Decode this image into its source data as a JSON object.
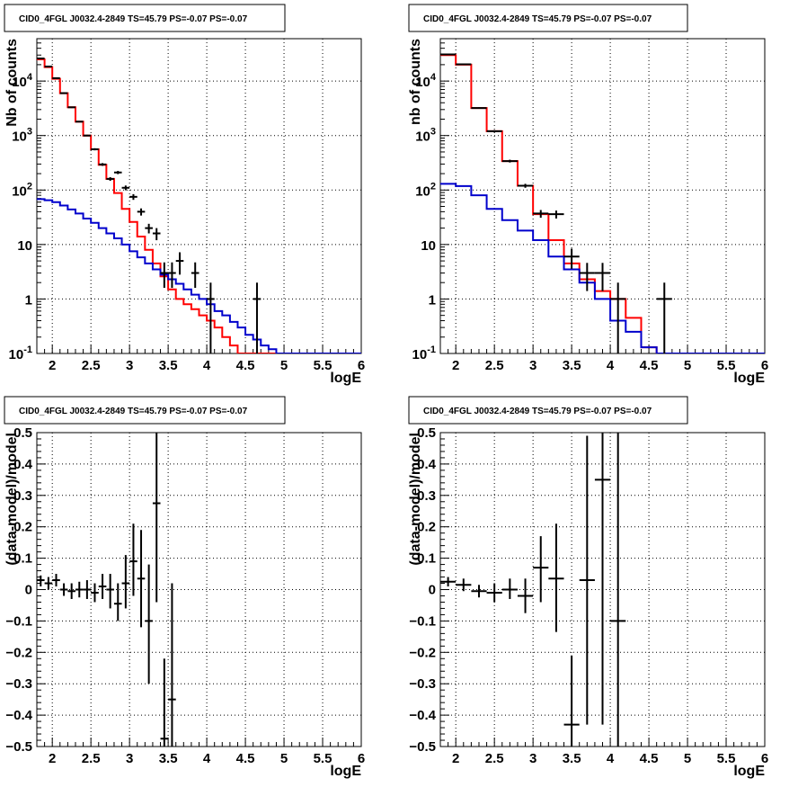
{
  "colors": {
    "model": "#ff0000",
    "background_model": "#0000cc",
    "data": "#000000",
    "grid": "#000000"
  },
  "chart_data": [
    {
      "type": "line",
      "panel": "top-left",
      "title": "CID0_4FGL J0032.4-2849 TS=45.79 PS=-0.07 PS=-0.07",
      "xlabel": "logE",
      "ylabel": "Nb of counts",
      "xlim": [
        1.8,
        6.0
      ],
      "ylim": [
        0.1,
        60000
      ],
      "yscale": "log",
      "grid": true,
      "x_ticks": [
        "2",
        "2.5",
        "3",
        "3.5",
        "4",
        "4.5",
        "5",
        "5.5",
        "6"
      ],
      "y_ticks": [
        {
          "base": "10",
          "exp": "-1"
        },
        {
          "base": "1",
          "exp": ""
        },
        {
          "base": "10",
          "exp": ""
        },
        {
          "base": "10",
          "exp": "2"
        },
        {
          "base": "10",
          "exp": "3"
        },
        {
          "base": "10",
          "exp": "4"
        }
      ],
      "bin_edges": [
        1.8,
        1.9,
        2.0,
        2.1,
        2.2,
        2.3,
        2.4,
        2.5,
        2.6,
        2.7,
        2.8,
        2.9,
        3.0,
        3.1,
        3.2,
        3.3,
        3.4,
        3.5,
        3.6,
        3.7,
        3.8,
        3.9,
        4.0,
        4.1,
        4.2,
        4.3,
        4.4,
        4.5,
        4.6,
        4.7,
        4.8,
        4.9,
        5.0,
        5.1,
        5.2,
        5.3,
        5.4,
        5.5,
        5.6,
        5.7,
        5.8,
        5.9,
        6.0
      ],
      "series": [
        {
          "role": "model",
          "color": "#ff0000",
          "style": "step",
          "values": [
            25000,
            18000,
            11000,
            6000,
            3300,
            1800,
            1000,
            560,
            290,
            160,
            88,
            45,
            26,
            14,
            8,
            4.5,
            2.6,
            1.5,
            1.0,
            0.8,
            0.65,
            0.5,
            0.4,
            0.3,
            0.2,
            0.14,
            0.1,
            0.1,
            0.1,
            0.1,
            0.1,
            0.1,
            0.1,
            0.1,
            0.1,
            0.1,
            0.1,
            0.1,
            0.1,
            0.1,
            0.1,
            0.1
          ]
        },
        {
          "role": "background",
          "color": "#0000cc",
          "style": "step",
          "values": [
            68,
            65,
            60,
            52,
            44,
            37,
            30,
            25,
            20,
            16,
            13,
            10,
            7.5,
            5.8,
            4.5,
            3.5,
            2.8,
            2.3,
            1.9,
            1.5,
            1.2,
            1.0,
            0.8,
            0.6,
            0.5,
            0.38,
            0.3,
            0.22,
            0.18,
            0.14,
            0.12,
            0.1,
            0.1,
            0.1,
            0.1,
            0.1,
            0.1,
            0.1,
            0.1,
            0.1,
            0.1,
            0.1
          ]
        },
        {
          "role": "data",
          "color": "#000000",
          "style": "errorbar",
          "points": [
            {
              "x": 1.85,
              "y": 26000,
              "lo": 25500,
              "hi": 26500
            },
            {
              "x": 1.95,
              "y": 18500,
              "lo": 18100,
              "hi": 18900
            },
            {
              "x": 2.05,
              "y": 11300,
              "lo": 11000,
              "hi": 11600
            },
            {
              "x": 2.15,
              "y": 6000,
              "lo": 5800,
              "hi": 6200
            },
            {
              "x": 2.25,
              "y": 3300,
              "lo": 3200,
              "hi": 3400
            },
            {
              "x": 2.35,
              "y": 1800,
              "lo": 1750,
              "hi": 1850
            },
            {
              "x": 2.45,
              "y": 1000,
              "lo": 970,
              "hi": 1030
            },
            {
              "x": 2.55,
              "y": 560,
              "lo": 535,
              "hi": 585
            },
            {
              "x": 2.65,
              "y": 295,
              "lo": 278,
              "hi": 312
            },
            {
              "x": 2.75,
              "y": 160,
              "lo": 148,
              "hi": 172
            },
            {
              "x": 2.85,
              "y": 210,
              "lo": 196,
              "hi": 224
            },
            {
              "x": 2.95,
              "y": 110,
              "lo": 99,
              "hi": 121
            },
            {
              "x": 3.05,
              "y": 75,
              "lo": 66,
              "hi": 84
            },
            {
              "x": 3.15,
              "y": 40,
              "lo": 34,
              "hi": 46
            },
            {
              "x": 3.25,
              "y": 20,
              "lo": 16,
              "hi": 24
            },
            {
              "x": 3.35,
              "y": 16,
              "lo": 12,
              "hi": 20
            },
            {
              "x": 3.45,
              "y": 3,
              "lo": 1.6,
              "hi": 4.7
            },
            {
              "x": 3.55,
              "y": 3,
              "lo": 1.6,
              "hi": 4.7
            },
            {
              "x": 3.65,
              "y": 5,
              "lo": 2.8,
              "hi": 7.2
            },
            {
              "x": 3.85,
              "y": 3,
              "lo": 1.6,
              "hi": 4.7
            },
            {
              "x": 4.05,
              "y": 1,
              "lo": 0.1,
              "hi": 2.0
            },
            {
              "x": 4.65,
              "y": 1,
              "lo": 0.1,
              "hi": 2.0
            }
          ]
        }
      ]
    },
    {
      "type": "line",
      "panel": "top-right",
      "title": "CID0_4FGL J0032.4-2849 TS=45.79 PS=-0.07 PS=-0.07",
      "xlabel": "logE",
      "ylabel": "nb of counts",
      "xlim": [
        1.8,
        6.0
      ],
      "ylim": [
        0.1,
        60000
      ],
      "yscale": "log",
      "grid": true,
      "x_ticks": [
        "2",
        "2.5",
        "3",
        "3.5",
        "4",
        "4.5",
        "5",
        "5.5",
        "6"
      ],
      "y_ticks": [
        {
          "base": "10",
          "exp": "-1"
        },
        {
          "base": "1",
          "exp": ""
        },
        {
          "base": "10",
          "exp": ""
        },
        {
          "base": "10",
          "exp": "2"
        },
        {
          "base": "10",
          "exp": "3"
        },
        {
          "base": "10",
          "exp": "4"
        }
      ],
      "bin_edges": [
        1.8,
        2.0,
        2.2,
        2.4,
        2.6,
        2.8,
        3.0,
        3.2,
        3.4,
        3.6,
        3.8,
        4.0,
        4.2,
        4.4,
        4.6,
        4.8,
        5.0,
        5.2,
        5.4,
        5.6,
        5.8,
        6.0
      ],
      "series": [
        {
          "role": "model",
          "color": "#ff0000",
          "style": "step",
          "values": [
            30000,
            20000,
            3200,
            1200,
            340,
            120,
            36,
            12,
            4.5,
            2.3,
            1.4,
            1.0,
            0.45,
            0.13,
            0.1,
            0.1,
            0.1,
            0.1,
            0.1,
            0.1,
            0.1
          ]
        },
        {
          "role": "background",
          "color": "#0000cc",
          "style": "step",
          "values": [
            130,
            118,
            80,
            45,
            28,
            18,
            12,
            6,
            3.5,
            2,
            1,
            0.4,
            0.25,
            0.13,
            0.1,
            0.1,
            0.1,
            0.1,
            0.1,
            0.1,
            0.1
          ]
        },
        {
          "role": "data",
          "color": "#000000",
          "style": "errorbar",
          "points": [
            {
              "x": 1.9,
              "y": 30800,
              "lo": 30300,
              "hi": 31300
            },
            {
              "x": 2.1,
              "y": 20300,
              "lo": 19900,
              "hi": 20700
            },
            {
              "x": 2.3,
              "y": 3200,
              "lo": 3100,
              "hi": 3300
            },
            {
              "x": 2.5,
              "y": 1200,
              "lo": 1150,
              "hi": 1250
            },
            {
              "x": 2.7,
              "y": 340,
              "lo": 320,
              "hi": 360
            },
            {
              "x": 2.9,
              "y": 120,
              "lo": 110,
              "hi": 130
            },
            {
              "x": 3.1,
              "y": 37,
              "lo": 31,
              "hi": 43
            },
            {
              "x": 3.3,
              "y": 36,
              "lo": 30,
              "hi": 42
            },
            {
              "x": 3.5,
              "y": 6,
              "lo": 3.6,
              "hi": 8.4
            },
            {
              "x": 3.7,
              "y": 3,
              "lo": 1.4,
              "hi": 4.6
            },
            {
              "x": 3.9,
              "y": 3,
              "lo": 1.4,
              "hi": 4.6
            },
            {
              "x": 4.1,
              "y": 1,
              "lo": 0.1,
              "hi": 2.0
            },
            {
              "x": 4.7,
              "y": 1,
              "lo": 0.1,
              "hi": 2.0
            }
          ]
        }
      ]
    },
    {
      "type": "scatter",
      "panel": "bottom-left",
      "title": "CID0_4FGL J0032.4-2849 TS=45.79 PS=-0.07 PS=-0.07",
      "xlabel": "logE",
      "ylabel": "(data-model)/model",
      "xlim": [
        1.8,
        6.0
      ],
      "ylim": [
        -0.5,
        0.5
      ],
      "grid": true,
      "x_ticks": [
        "2",
        "2.5",
        "3",
        "3.5",
        "4",
        "4.5",
        "5",
        "5.5",
        "6"
      ],
      "y_ticks": [
        "−0.5",
        "−0.4",
        "−0.3",
        "−0.2",
        "−0.1",
        "0",
        "0.1",
        "0.2",
        "0.3",
        "0.4",
        "0.5"
      ],
      "bin_half_width": 0.05,
      "points": [
        {
          "x": 1.85,
          "y": 0.03,
          "lo": 0.01,
          "hi": 0.045
        },
        {
          "x": 1.95,
          "y": 0.02,
          "lo": 0.0,
          "hi": 0.04
        },
        {
          "x": 2.05,
          "y": 0.03,
          "lo": 0.01,
          "hi": 0.05
        },
        {
          "x": 2.15,
          "y": 0.0,
          "lo": -0.02,
          "hi": 0.02
        },
        {
          "x": 2.25,
          "y": -0.005,
          "lo": -0.03,
          "hi": 0.02
        },
        {
          "x": 2.35,
          "y": 0.0,
          "lo": -0.025,
          "hi": 0.025
        },
        {
          "x": 2.45,
          "y": 0.0,
          "lo": -0.03,
          "hi": 0.03
        },
        {
          "x": 2.55,
          "y": -0.01,
          "lo": -0.04,
          "hi": 0.02
        },
        {
          "x": 2.65,
          "y": 0.01,
          "lo": -0.03,
          "hi": 0.05
        },
        {
          "x": 2.75,
          "y": 0.0,
          "lo": -0.06,
          "hi": 0.05
        },
        {
          "x": 2.85,
          "y": -0.045,
          "lo": -0.1,
          "hi": 0.02
        },
        {
          "x": 2.95,
          "y": 0.02,
          "lo": -0.06,
          "hi": 0.11
        },
        {
          "x": 3.05,
          "y": 0.09,
          "lo": -0.02,
          "hi": 0.21
        },
        {
          "x": 3.15,
          "y": 0.035,
          "lo": -0.12,
          "hi": 0.19
        },
        {
          "x": 3.25,
          "y": -0.1,
          "lo": -0.3,
          "hi": 0.08
        },
        {
          "x": 3.35,
          "y": 0.275,
          "lo": -0.04,
          "hi": 0.5
        },
        {
          "x": 3.45,
          "y": -0.475,
          "lo": -0.5,
          "hi": -0.22
        },
        {
          "x": 3.55,
          "y": -0.35,
          "lo": -0.5,
          "hi": 0.02
        }
      ]
    },
    {
      "type": "scatter",
      "panel": "bottom-right",
      "title": "CID0_4FGL J0032.4-2849 TS=45.79 PS=-0.07 PS=-0.07",
      "xlabel": "logE",
      "ylabel": "(data-model)/model",
      "xlim": [
        1.8,
        6.0
      ],
      "ylim": [
        -0.5,
        0.5
      ],
      "grid": true,
      "x_ticks": [
        "2",
        "2.5",
        "3",
        "3.5",
        "4",
        "4.5",
        "5",
        "5.5",
        "6"
      ],
      "y_ticks": [
        "−0.5",
        "−0.4",
        "−0.3",
        "−0.2",
        "−0.1",
        "0",
        "0.1",
        "0.2",
        "0.3",
        "0.4",
        "0.5"
      ],
      "bin_half_width": 0.1,
      "points": [
        {
          "x": 1.9,
          "y": 0.025,
          "lo": 0.01,
          "hi": 0.04
        },
        {
          "x": 2.1,
          "y": 0.015,
          "lo": -0.005,
          "hi": 0.035
        },
        {
          "x": 2.3,
          "y": -0.005,
          "lo": -0.025,
          "hi": 0.015
        },
        {
          "x": 2.5,
          "y": -0.01,
          "lo": -0.04,
          "hi": 0.02
        },
        {
          "x": 2.7,
          "y": 0.0,
          "lo": -0.03,
          "hi": 0.035
        },
        {
          "x": 2.9,
          "y": -0.02,
          "lo": -0.075,
          "hi": 0.035
        },
        {
          "x": 3.1,
          "y": 0.07,
          "lo": -0.04,
          "hi": 0.17
        },
        {
          "x": 3.3,
          "y": 0.035,
          "lo": -0.135,
          "hi": 0.21
        },
        {
          "x": 3.5,
          "y": -0.43,
          "lo": -0.5,
          "hi": -0.21
        },
        {
          "x": 3.7,
          "y": 0.03,
          "lo": -0.43,
          "hi": 0.49
        },
        {
          "x": 3.9,
          "y": 0.35,
          "lo": -0.43,
          "hi": 0.5
        },
        {
          "x": 4.1,
          "y": -0.1,
          "lo": -0.5,
          "hi": 0.5
        }
      ]
    }
  ]
}
